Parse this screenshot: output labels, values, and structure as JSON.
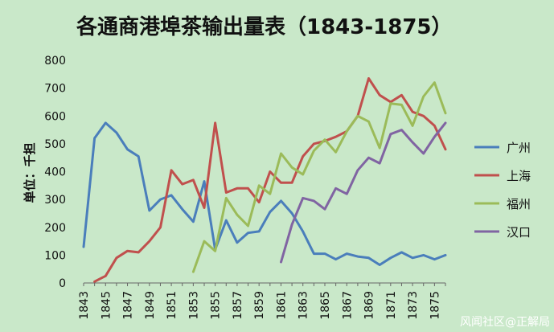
{
  "chart_data": {
    "type": "line",
    "title": "各通商港埠茶输出量表（1843-1875）",
    "ylabel": "单位：千担",
    "xlabel": "",
    "ylim": [
      0,
      800
    ],
    "yticks": [
      0,
      100,
      200,
      300,
      400,
      500,
      600,
      700,
      800
    ],
    "xlim": [
      1843,
      1876
    ],
    "xticks": [
      1843,
      1845,
      1847,
      1849,
      1851,
      1853,
      1855,
      1857,
      1859,
      1861,
      1863,
      1865,
      1867,
      1869,
      1871,
      1873,
      1875
    ],
    "grid": false,
    "legend_position": "right",
    "series": [
      {
        "name": "广州",
        "color": "#4a7ebb",
        "x": [
          1843,
          1844,
          1845,
          1846,
          1847,
          1848,
          1849,
          1850,
          1851,
          1852,
          1853,
          1854,
          1855,
          1856,
          1857,
          1858,
          1859,
          1860,
          1861,
          1862,
          1863,
          1864,
          1865,
          1866,
          1867,
          1868,
          1869,
          1870,
          1871,
          1872,
          1873,
          1874,
          1875,
          1876
        ],
        "values": [
          130,
          520,
          575,
          540,
          480,
          455,
          260,
          300,
          315,
          265,
          220,
          365,
          120,
          225,
          145,
          180,
          185,
          255,
          295,
          250,
          185,
          105,
          105,
          85,
          105,
          95,
          90,
          65,
          90,
          110,
          90,
          100,
          85,
          100
        ]
      },
      {
        "name": "上海",
        "color": "#c0504d",
        "x": [
          1844,
          1845,
          1846,
          1847,
          1848,
          1849,
          1850,
          1851,
          1852,
          1853,
          1854,
          1855,
          1856,
          1857,
          1858,
          1859,
          1860,
          1861,
          1862,
          1863,
          1864,
          1865,
          1866,
          1867,
          1868,
          1869,
          1870,
          1871,
          1872,
          1873,
          1874,
          1875,
          1876
        ],
        "values": [
          5,
          25,
          90,
          115,
          110,
          150,
          200,
          405,
          355,
          370,
          270,
          575,
          325,
          340,
          340,
          290,
          400,
          360,
          360,
          455,
          500,
          510,
          525,
          545,
          600,
          735,
          675,
          650,
          675,
          615,
          600,
          565,
          480
        ]
      },
      {
        "name": "福州",
        "color": "#9bbb59",
        "x": [
          1853,
          1854,
          1855,
          1856,
          1857,
          1858,
          1859,
          1860,
          1861,
          1862,
          1863,
          1864,
          1865,
          1866,
          1867,
          1868,
          1869,
          1870,
          1871,
          1872,
          1873,
          1874,
          1875,
          1876
        ],
        "values": [
          40,
          150,
          115,
          305,
          245,
          205,
          350,
          320,
          465,
          415,
          390,
          475,
          515,
          470,
          545,
          600,
          580,
          485,
          645,
          640,
          565,
          670,
          720,
          610
        ]
      },
      {
        "name": "汉口",
        "color": "#8064a2",
        "x": [
          1861,
          1862,
          1863,
          1864,
          1865,
          1866,
          1867,
          1868,
          1869,
          1870,
          1871,
          1872,
          1873,
          1874,
          1875,
          1876
        ],
        "values": [
          75,
          210,
          305,
          295,
          265,
          340,
          320,
          405,
          450,
          430,
          535,
          550,
          505,
          465,
          525,
          575
        ]
      }
    ]
  },
  "watermark": "风闻社区@正解局"
}
